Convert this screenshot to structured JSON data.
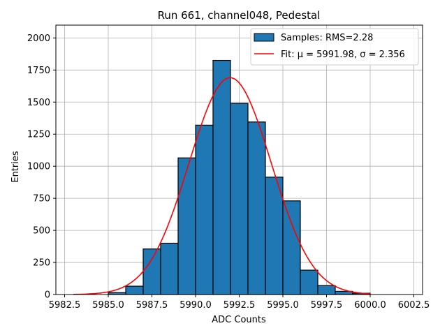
{
  "chart_data": {
    "type": "bar",
    "title": "Run 661, channel048, Pedestal",
    "xlabel": "ADC Counts",
    "ylabel": "Entries",
    "xlim": [
      5982.0,
      6003.0
    ],
    "ylim": [
      0,
      2100
    ],
    "xticks": [
      5982.5,
      5985.0,
      5987.5,
      5990.0,
      5992.5,
      5995.0,
      5997.5,
      6000.0,
      6002.5
    ],
    "xtick_labels": [
      "5982.5",
      "5985.0",
      "5987.5",
      "5990.0",
      "5992.5",
      "5995.0",
      "5997.5",
      "6000.0",
      "6002.5"
    ],
    "yticks": [
      0,
      250,
      500,
      750,
      1000,
      1250,
      1500,
      1750,
      2000
    ],
    "ytick_labels": [
      "0",
      "250",
      "500",
      "750",
      "1000",
      "1250",
      "1500",
      "1750",
      "2000"
    ],
    "grid": true,
    "bin_edges": [
      5985,
      5986,
      5987,
      5988,
      5989,
      5990,
      5991,
      5992,
      5993,
      5994,
      5995,
      5996,
      5997,
      5998,
      5999,
      6000
    ],
    "values": [
      15,
      65,
      355,
      400,
      1065,
      1320,
      1825,
      1490,
      1345,
      915,
      730,
      190,
      70,
      25,
      10
    ],
    "bar_color": "#1f77b4",
    "bar_edge_color": "#000000",
    "fit": {
      "mu": 5991.98,
      "sigma": 2.356,
      "amplitude": 1690,
      "x_range": [
        5983,
        6000
      ],
      "color": "#ff0000"
    },
    "legend": {
      "placement": "top-right",
      "entries": [
        {
          "label": "Samples: RMS=2.28",
          "kind": "patch"
        },
        {
          "label": "Fit: μ = 5991.98, σ = 2.356",
          "kind": "line"
        }
      ]
    }
  }
}
